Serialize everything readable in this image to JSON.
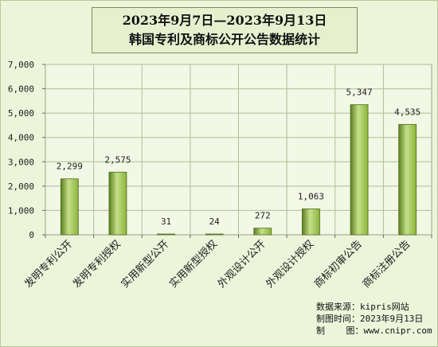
{
  "title": {
    "line1": "2023年9月7日—2023年9月13日",
    "line2": "韩国专利及商标公开公告数据统计"
  },
  "colors": {
    "background": "#ecf4da",
    "bar": "#8cb33a",
    "bar_dark": "#5b7f1e",
    "bar_light": "#c5e08a"
  },
  "chart_data": {
    "type": "bar",
    "categories": [
      "发明专利公开",
      "发明专利授权",
      "实用新型公开",
      "实用新型授权",
      "外观设计公开",
      "外观设计授权",
      "商标初审公告",
      "商标注册公告"
    ],
    "values": [
      2299,
      2575,
      31,
      24,
      272,
      1063,
      5347,
      4535
    ],
    "value_labels": [
      "2,299",
      "2,575",
      "31",
      "24",
      "272",
      "1,063",
      "5,347",
      "4,535"
    ],
    "yticks": [
      "0",
      "1,000",
      "2,000",
      "3,000",
      "4,000",
      "5,000",
      "6,000",
      "7,000"
    ],
    "ylim": [
      0,
      7000
    ],
    "grid": true
  },
  "footer": {
    "source": "数据来源：kipris网站",
    "date": "制图时间：2023年9月13日",
    "maker": "制    图：www.cnipr.com"
  }
}
